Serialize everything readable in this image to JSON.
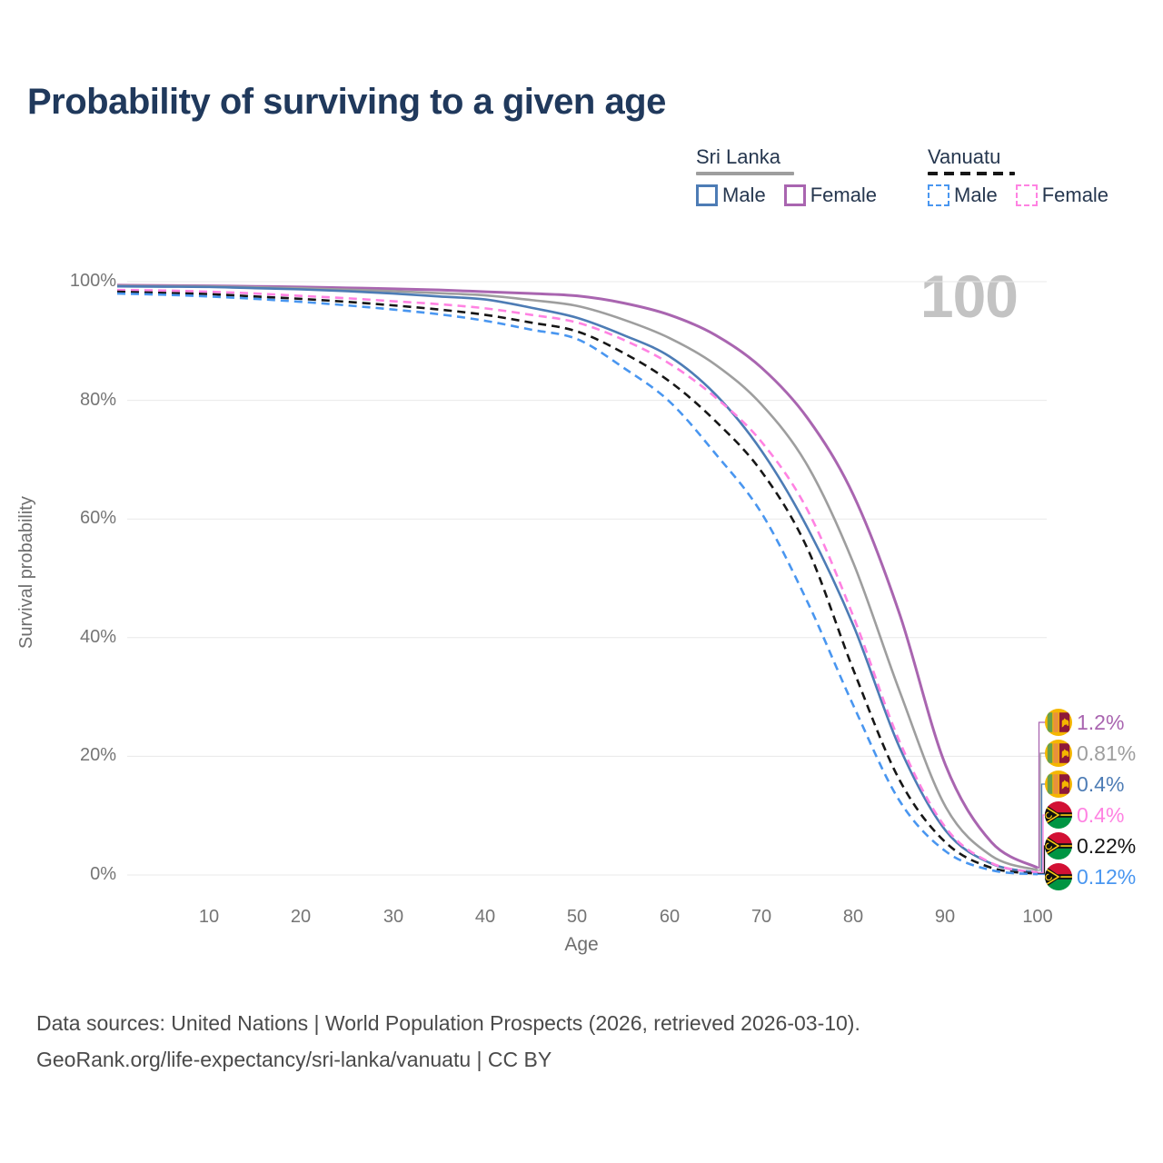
{
  "title": "Probability of surviving to a given age",
  "watermark": "100",
  "legend": {
    "groups": [
      {
        "country": "Sri Lanka",
        "line_style": "solid",
        "line_color": "#9e9e9e",
        "items": [
          {
            "label": "Male",
            "color": "#4d7cb5",
            "dashed": false
          },
          {
            "label": "Female",
            "color": "#a965b0",
            "dashed": false
          }
        ]
      },
      {
        "country": "Vanuatu",
        "line_style": "dashed",
        "line_color": "#161616",
        "items": [
          {
            "label": "Male",
            "color": "#4996f0",
            "dashed": true
          },
          {
            "label": "Female",
            "color": "#ff82e2",
            "dashed": true
          }
        ]
      }
    ]
  },
  "axes": {
    "y_label": "Survival probability",
    "x_label": "Age",
    "y_tick_values": [
      0,
      20,
      40,
      60,
      80,
      100
    ],
    "y_tick_labels": [
      "0%",
      "20%",
      "40%",
      "60%",
      "80%",
      "100%"
    ],
    "x_tick_values": [
      10,
      20,
      30,
      40,
      50,
      60,
      70,
      80,
      90,
      100
    ],
    "x_tick_labels": [
      "10",
      "20",
      "30",
      "40",
      "50",
      "60",
      "70",
      "80",
      "90",
      "100"
    ],
    "x_range": [
      0,
      100
    ],
    "y_range": [
      0,
      100
    ],
    "grid": "horizontal-only",
    "grid_color": "#e8e8e8"
  },
  "chart_data": {
    "type": "line",
    "title": "Probability of surviving to a given age",
    "xlabel": "Age",
    "ylabel": "Survival probability",
    "x": [
      0,
      5,
      10,
      15,
      20,
      25,
      30,
      35,
      40,
      45,
      50,
      55,
      60,
      65,
      70,
      75,
      80,
      85,
      90,
      95,
      100
    ],
    "series": [
      {
        "name": "Sri Lanka Female",
        "country": "Sri Lanka",
        "sex": "Female",
        "flag": "lk",
        "color": "#a965b0",
        "dashed": false,
        "width": 3,
        "end_label": "1.2%",
        "values": [
          99.4,
          99.35,
          99.3,
          99.2,
          99.1,
          98.95,
          98.8,
          98.6,
          98.3,
          98.0,
          97.6,
          96.4,
          94.4,
          91.0,
          85.5,
          77.0,
          64.0,
          44.0,
          18.5,
          5.5,
          1.2
        ]
      },
      {
        "name": "Sri Lanka Both sexes",
        "country": "Sri Lanka",
        "sex": "All",
        "flag": "lk",
        "color": "#9e9e9e",
        "dashed": false,
        "width": 2.6,
        "end_label": "0.81%",
        "values": [
          99.3,
          99.25,
          99.2,
          99.05,
          98.9,
          98.65,
          98.4,
          98.05,
          97.7,
          96.9,
          95.9,
          93.6,
          90.5,
          86.0,
          79.3,
          69.0,
          52.5,
          31.0,
          11.5,
          3.2,
          0.81
        ]
      },
      {
        "name": "Sri Lanka Male",
        "country": "Sri Lanka",
        "sex": "Male",
        "flag": "lk",
        "color": "#4d7cb5",
        "dashed": false,
        "width": 2.6,
        "end_label": "0.4%",
        "values": [
          99.2,
          99.15,
          99.1,
          98.9,
          98.7,
          98.4,
          98.0,
          97.5,
          97.0,
          95.6,
          93.9,
          91.0,
          87.4,
          81.0,
          71.5,
          58.5,
          42.0,
          21.5,
          7.5,
          1.9,
          0.4
        ]
      },
      {
        "name": "Vanuatu Female",
        "country": "Vanuatu",
        "sex": "Female",
        "flag": "vu",
        "color": "#ff82e2",
        "dashed": true,
        "width": 2.6,
        "end_label": "0.4%",
        "values": [
          98.6,
          98.5,
          98.3,
          98.0,
          97.6,
          97.2,
          96.7,
          96.2,
          95.5,
          94.4,
          93.1,
          90.2,
          86.2,
          80.5,
          73.0,
          61.5,
          43.5,
          22.5,
          8.0,
          2.0,
          0.4
        ]
      },
      {
        "name": "Vanuatu Both sexes",
        "country": "Vanuatu",
        "sex": "All",
        "flag": "vu",
        "color": "#161616",
        "dashed": true,
        "width": 2.6,
        "end_label": "0.22%",
        "values": [
          98.3,
          98.1,
          97.9,
          97.5,
          97.1,
          96.6,
          96.0,
          95.3,
          94.4,
          93.1,
          91.6,
          88.0,
          83.2,
          76.5,
          68.0,
          55.0,
          34.5,
          16.0,
          5.5,
          1.2,
          0.22
        ]
      },
      {
        "name": "Vanuatu Male",
        "country": "Vanuatu",
        "sex": "Male",
        "flag": "vu",
        "color": "#4996f0",
        "dashed": true,
        "width": 2.6,
        "end_label": "0.12%",
        "values": [
          98.0,
          97.8,
          97.5,
          97.1,
          96.6,
          96.0,
          95.3,
          94.5,
          93.4,
          91.9,
          90.3,
          85.5,
          79.8,
          71.0,
          61.0,
          46.0,
          28.5,
          12.5,
          4.0,
          0.8,
          0.12
        ]
      }
    ],
    "legend_position": "top-right",
    "annotation": "100"
  },
  "footer": {
    "line1": "Data sources: United Nations | World Population Prospects (2026, retrieved 2026-03-10).",
    "line2": "GeoRank.org/life-expectancy/sri-lanka/vanuatu | CC BY"
  },
  "colors": {
    "title": "#20395c",
    "tick_text": "#757575",
    "grid": "#e8e8e8",
    "watermark": "#c3c3c3",
    "footer_text": "#4a4a4a"
  }
}
